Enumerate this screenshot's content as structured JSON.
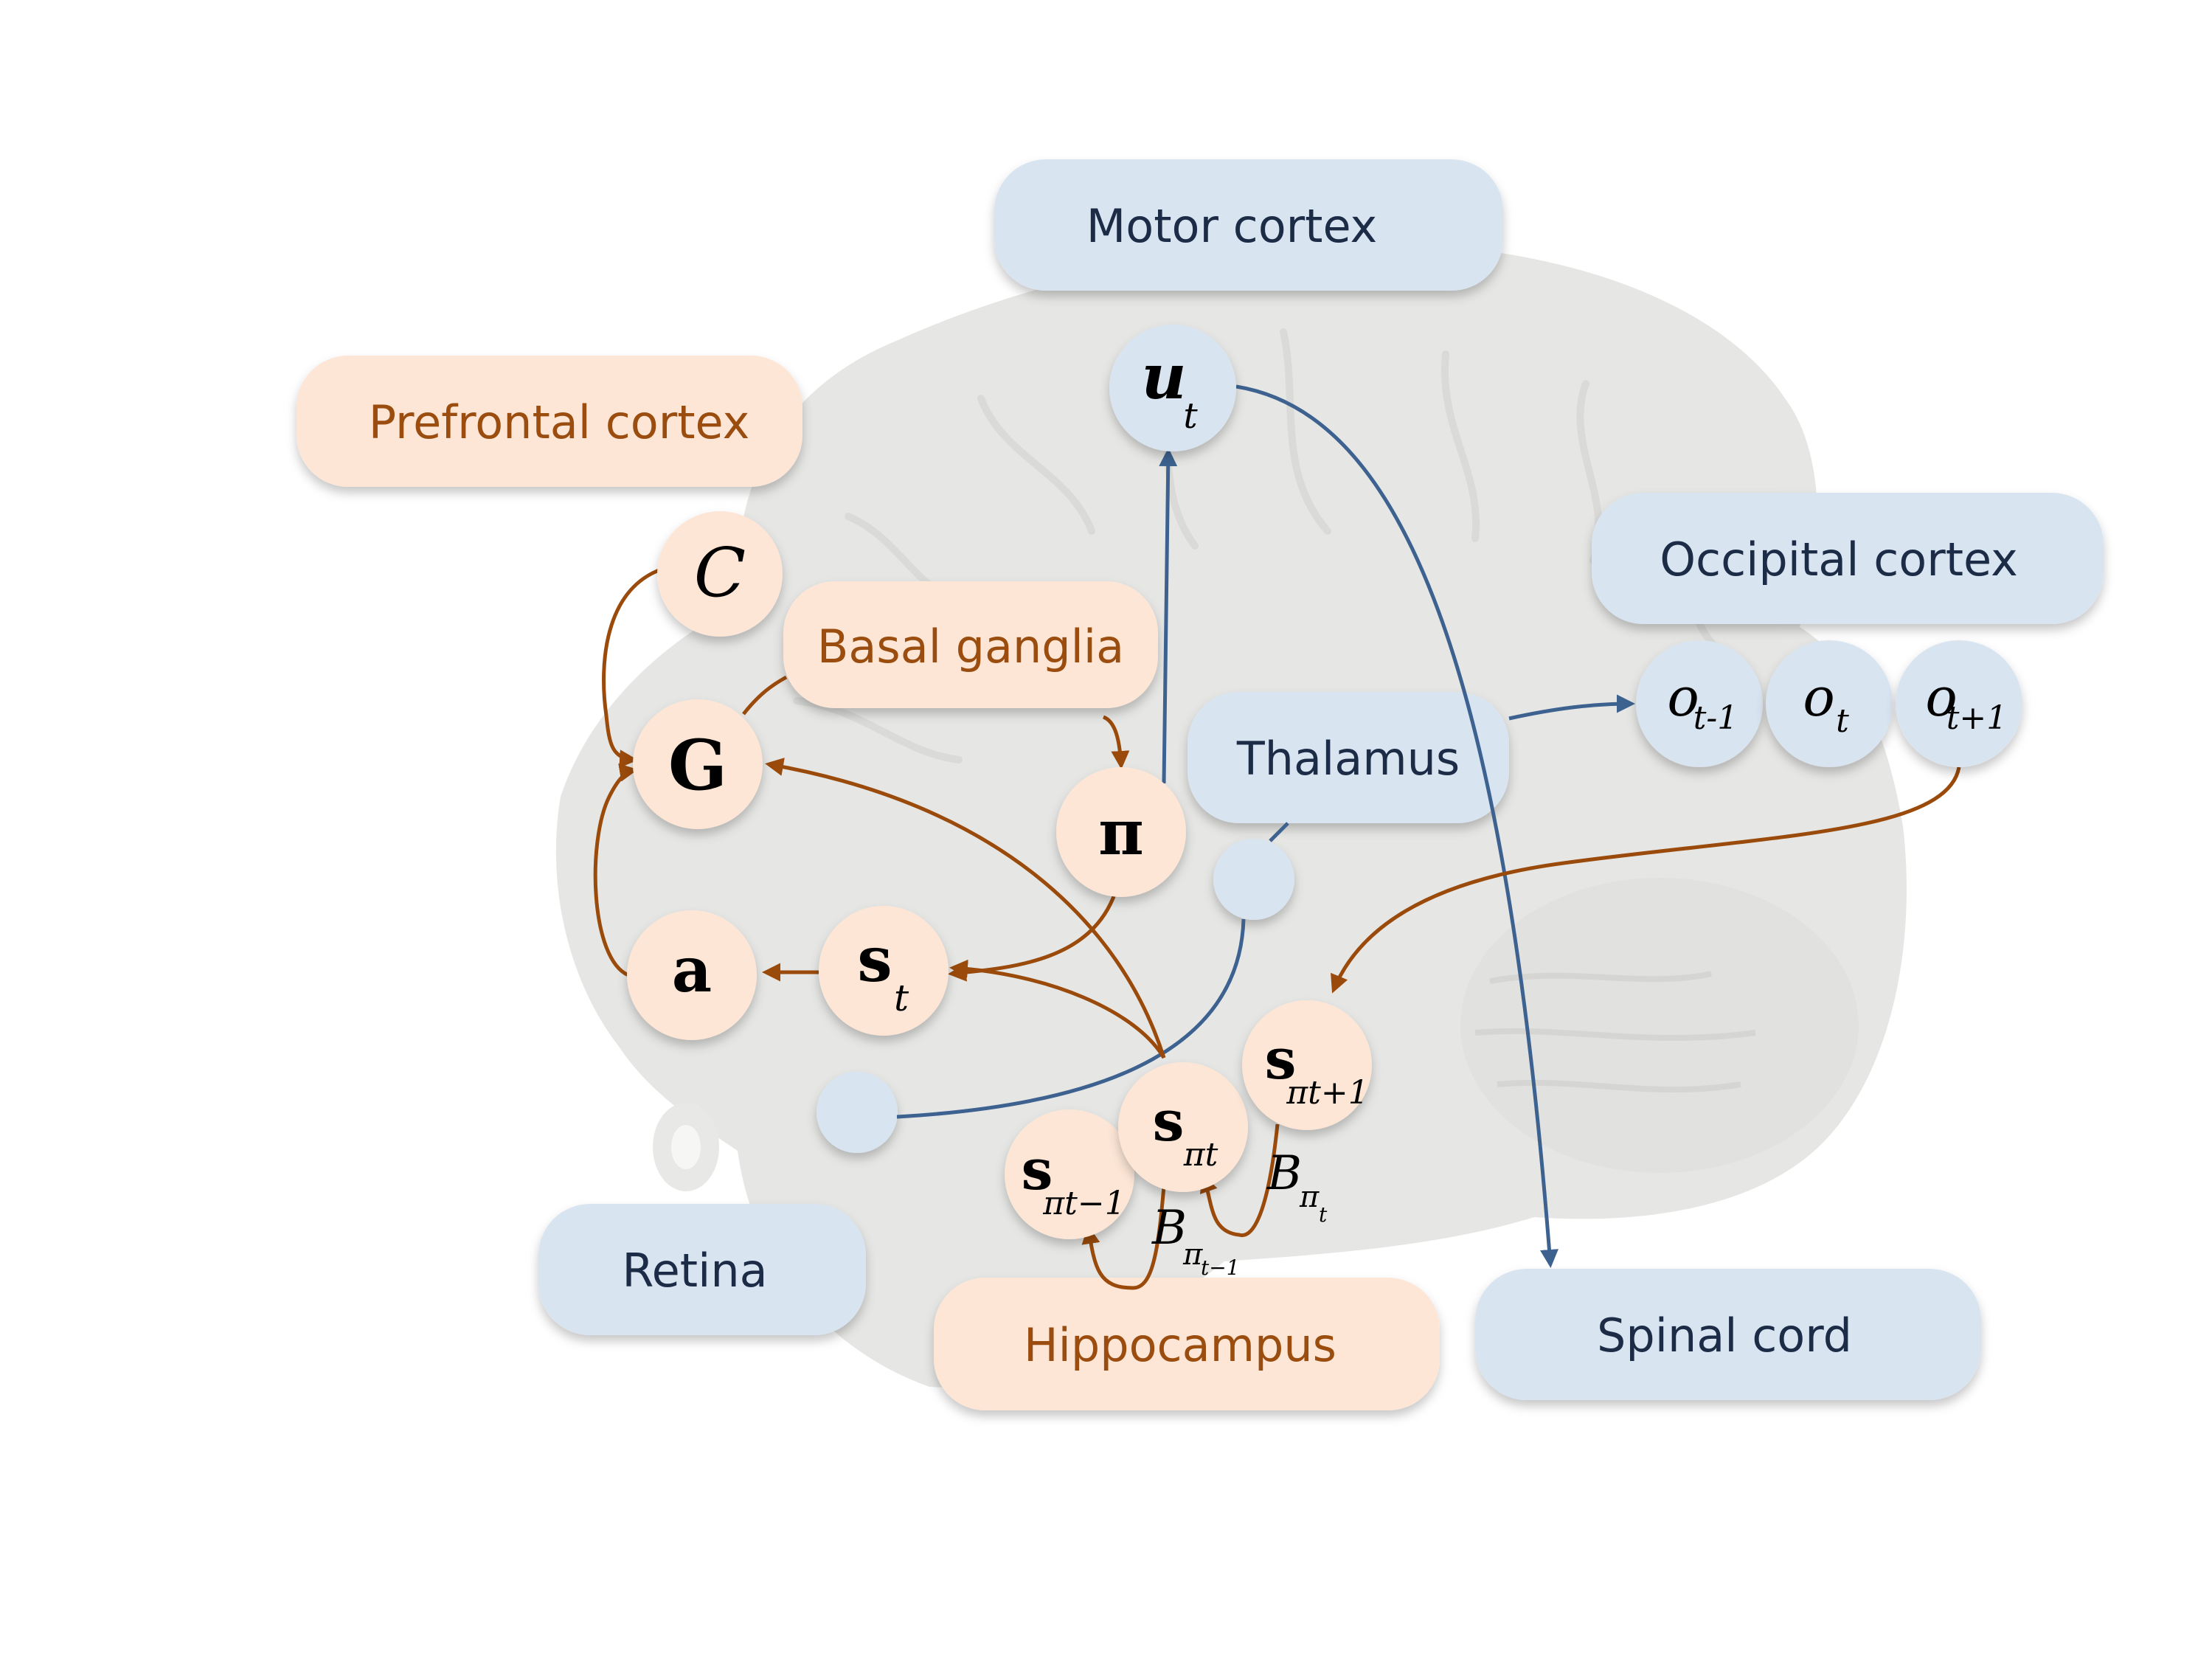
{
  "regions": {
    "motor_cortex": "Motor cortex",
    "prefrontal_cortex": "Prefrontal cortex",
    "basal_ganglia": "Basal ganglia",
    "thalamus": "Thalamus",
    "occipital_cortex": "Occipital cortex",
    "retina": "Retina",
    "hippocampus": "Hippocampus",
    "spinal_cord": "Spinal cord"
  },
  "nodes": {
    "u": {
      "main": "u",
      "sub": "t"
    },
    "C": {
      "main": "C"
    },
    "G": {
      "main": "G"
    },
    "pi": {
      "main": "π"
    },
    "a": {
      "main": "a"
    },
    "s_t": {
      "main": "s",
      "sub": "t"
    },
    "o_prev": {
      "main": "o",
      "sub": "t-1"
    },
    "o_cur": {
      "main": "o",
      "sub": "t"
    },
    "o_next": {
      "main": "o",
      "sub": "t+1"
    },
    "s_pi_prev": {
      "main": "s",
      "sub": "πt−1"
    },
    "s_pi_cur": {
      "main": "s",
      "sub": "πt"
    },
    "s_pi_next": {
      "main": "s",
      "sub": "πt+1"
    }
  },
  "edge_labels": {
    "B_t": {
      "main": "B",
      "sub": "π",
      "subsub": "t"
    },
    "B_prev": {
      "main": "B",
      "sub": "π",
      "subsub": "t−1"
    }
  },
  "colors": {
    "warm_box": "#fde6d6",
    "warm_text": "#9a4d0e",
    "warm_arrow": "#9a4a0a",
    "cool_box": "#d9e4f1",
    "cool_text": "#1c2c46",
    "cool_arrow": "#3d6290"
  }
}
